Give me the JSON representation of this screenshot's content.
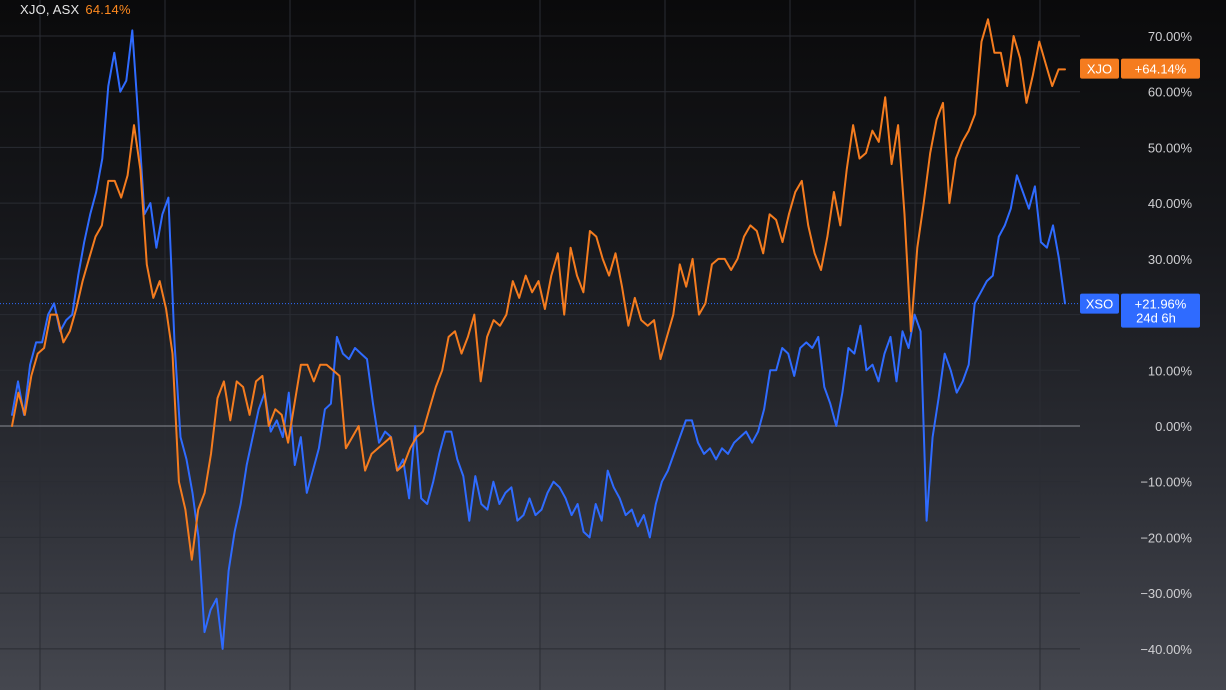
{
  "header": {
    "symbol": "XJO, ASX",
    "change": "64.14%"
  },
  "colors": {
    "xjo": "#f57c1f",
    "xso": "#2f6bff",
    "grid": "#2a2c33",
    "zero": "#8a8c93"
  },
  "chart_data": {
    "type": "line",
    "grid": true,
    "ylim": [
      -47,
      77
    ],
    "yticks": [
      70,
      60,
      50,
      40,
      30,
      20,
      10,
      0,
      -10,
      -20,
      -30,
      -40
    ],
    "ytick_labels": [
      "70.00%",
      "60.00%",
      "50.00%",
      "40.00%",
      "30.00%",
      "20.00%",
      "10.00%",
      "0.00%",
      "−10.00%",
      "−20.00%",
      "−30.00%",
      "−40.00%"
    ],
    "series": [
      {
        "name": "XJO",
        "color": "#f57c1f",
        "last_label": "+64.14%",
        "last_value": 64.14,
        "values": [
          0,
          6,
          2,
          9,
          13,
          14,
          20,
          20,
          15,
          17,
          21,
          26,
          30,
          34,
          36,
          44,
          44,
          41,
          45,
          54,
          46,
          29,
          23,
          26,
          21,
          13,
          -10,
          -15,
          -24,
          -15,
          -12,
          -5,
          5,
          8,
          1,
          8,
          7,
          2,
          8,
          9,
          0,
          3,
          2,
          -3,
          4,
          11,
          11,
          8,
          11,
          11,
          10,
          9,
          -4,
          -2,
          0,
          -8,
          -5,
          -4,
          -3,
          -2,
          -8,
          -7,
          -4,
          -2,
          -1,
          3,
          7,
          10,
          16,
          17,
          13,
          16,
          20,
          8,
          16,
          19,
          18,
          20,
          26,
          23,
          27,
          24,
          26,
          21,
          27,
          31,
          20,
          32,
          27,
          24,
          35,
          34,
          30,
          27,
          31,
          25,
          18,
          23,
          19,
          18,
          19,
          12,
          16,
          20,
          29,
          25,
          30,
          20,
          22,
          29,
          30,
          30,
          28,
          30,
          34,
          36,
          35,
          31,
          38,
          37,
          33,
          38,
          42,
          44,
          36,
          31,
          28,
          34,
          42,
          36,
          46,
          54,
          48,
          49,
          53,
          51,
          59,
          47,
          54,
          38,
          17,
          32,
          40,
          49,
          55,
          58,
          40,
          48,
          51,
          53,
          56,
          69,
          73,
          67,
          67,
          61,
          70,
          66,
          58,
          63,
          69,
          65,
          61,
          64,
          64
        ],
        "x_from": 0,
        "x_to": 186
      },
      {
        "name": "XSO",
        "color": "#2f6bff",
        "last_label": "+21.96%",
        "last_value": 21.96,
        "sub_label": "24d 6h",
        "values": [
          2,
          8,
          2,
          11,
          15,
          15,
          20,
          22,
          17,
          19,
          20,
          27,
          33,
          38,
          42,
          48,
          61,
          67,
          60,
          62,
          71,
          55,
          38,
          40,
          32,
          38,
          41,
          15,
          -2,
          -6,
          -12,
          -20,
          -37,
          -33,
          -31,
          -40,
          -26,
          -19,
          -14,
          -7,
          -2,
          3,
          6,
          -1,
          1,
          -2,
          6,
          -7,
          -2,
          -12,
          -8,
          -4,
          3,
          4,
          16,
          13,
          12,
          14,
          13,
          12,
          4,
          -3,
          -1,
          -2,
          -8,
          -6,
          -13,
          0,
          -13,
          -14,
          -10,
          -5,
          -1,
          -1,
          -6,
          -9,
          -17,
          -9,
          -14,
          -15,
          -10,
          -14,
          -12,
          -11,
          -17,
          -16,
          -13,
          -16,
          -15,
          -12,
          -10,
          -11,
          -13,
          -16,
          -14,
          -19,
          -20,
          -14,
          -17,
          -8,
          -11,
          -13,
          -16,
          -15,
          -18,
          -16,
          -20,
          -14,
          -10,
          -8,
          -5,
          -2,
          1,
          1,
          -3,
          -5,
          -4,
          -6,
          -4,
          -5,
          -3,
          -2,
          -1,
          -3,
          -1,
          3,
          10,
          10,
          14,
          13,
          9,
          14,
          15,
          14,
          16,
          7,
          4,
          0,
          6,
          14,
          13,
          18,
          10,
          11,
          8,
          13,
          16,
          8,
          17,
          14,
          20,
          17,
          -17,
          -2,
          5,
          13,
          10,
          6,
          8,
          11,
          22,
          24,
          26,
          27,
          34,
          36,
          39,
          45,
          42,
          39,
          43,
          33,
          32,
          36,
          30,
          22
        ],
        "x_from": 0,
        "x_to": 186
      }
    ],
    "series_tags": {
      "xjo": "XJO",
      "xso": "XSO"
    }
  }
}
